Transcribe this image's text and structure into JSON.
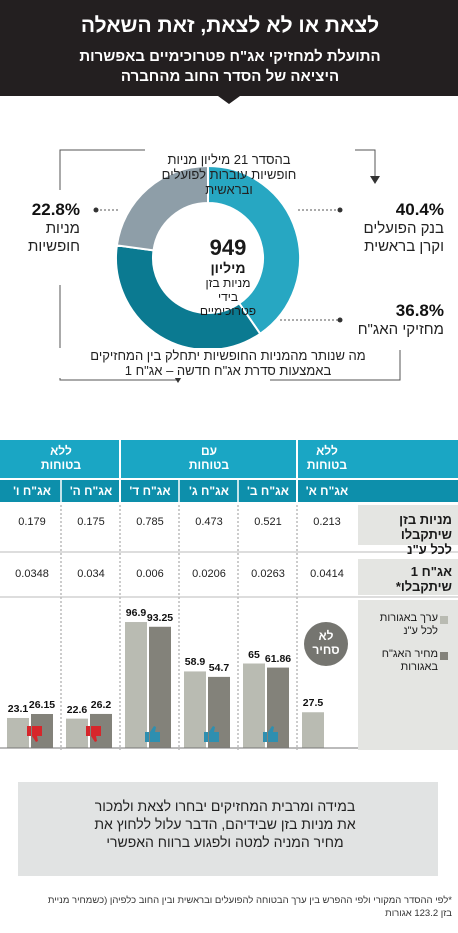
{
  "header": {
    "title": "לצאת או לא לצאת, זאת השאלה",
    "sub1": "התועלת למחזיקי אג\"ח פטרוכימיים באפשרות",
    "sub2": "היציאה של הסדר החוב מהחברה"
  },
  "donut": {
    "center_value": "949",
    "center_unit": "מיליון",
    "center_line1": "מניות בזן",
    "center_line2": "בידי",
    "center_line3": "פטרוכימיים",
    "top_note_line1": "בהסדר 21 מיליון מניות",
    "top_note_line2": "חופשיות עוברות לפועלים",
    "top_note_line3": "ובראשית",
    "bottom_note_line1": "מה שנותר מהמניות החופשיות יתחלק בין המחזיקים",
    "bottom_note_line2": "באמצעות סדרת אג\"ח חדשה – אג\"ח 1",
    "colors": {
      "bank": "#27a7c2",
      "holders": "#0b7a91",
      "free": "#8e9ea8"
    }
  },
  "chart_data": [
    {
      "type": "pie",
      "title": "",
      "slices": [
        {
          "label": "בנק הפועלים וקרן בראשית",
          "value": 40.4,
          "display": "40.4%",
          "line1": "בנק הפועלים",
          "line2": "וקרן בראשית"
        },
        {
          "label": "מחזיקי האג\"ח",
          "value": 36.8,
          "display": "36.8%",
          "line1": "מחזיקי האג\"ח",
          "line2": ""
        },
        {
          "label": "מניות חופשיות",
          "value": 22.8,
          "display": "22.8%",
          "line1": "מניות",
          "line2": "חופשיות"
        }
      ]
    },
    {
      "type": "bar",
      "categories": [
        "אג\"ח א'",
        "אג\"ח ב'",
        "אג\"ח ג'",
        "אג\"ח ד'",
        "אג\"ח ה'",
        "אג\"ח ו'"
      ],
      "series": [
        {
          "name": "ערך באגורות לכל ע\"נ",
          "values": [
            27.5,
            65,
            58.9,
            96.9,
            22.6,
            23.1
          ],
          "labels": [
            "27.5",
            "65",
            "58.9",
            "96.9",
            "22.6",
            "23.1"
          ]
        },
        {
          "name": "מחיר האג\"ח באגורות",
          "values": [
            null,
            61.86,
            54.7,
            93.25,
            26.2,
            26.15
          ],
          "labels": [
            "",
            "61.86",
            "54.7",
            "93.25",
            "26.2",
            "26.15"
          ]
        }
      ],
      "ylim": [
        0,
        100
      ]
    }
  ],
  "table": {
    "groups": [
      {
        "label_line1": "ללא",
        "label_line2": "בטוחות"
      },
      {
        "label_line1": "עם",
        "label_line2": "בטוחות"
      },
      {
        "label_line1": "ללא",
        "label_line2": "בטוחות"
      }
    ],
    "shares_per_nv_label_line1": "מניות בזן",
    "shares_per_nv_label_line2": "שיתקבלו",
    "shares_per_nv_label_line3": "לכל ע\"נ",
    "shares_per_nv": [
      "0.213",
      "0.521",
      "0.473",
      "0.785",
      "0.175",
      "0.179"
    ],
    "bond1_label_line1": "אג\"ח 1",
    "bond1_label_line2": "שיתקבלו*",
    "bond1_received": [
      "0.0414",
      "0.0263",
      "0.0206",
      "0.006",
      "0.034",
      "0.0348"
    ],
    "legend_value_line1": "ערך באגורות",
    "legend_value_line2": "לכל ע\"נ",
    "legend_price_line1": "מחיר האג\"ח",
    "legend_price_line2": "באגורות",
    "no_price_line1": "לא",
    "no_price_line2": "סחיר",
    "colors": {
      "header": "#1aa6c4",
      "header_dark": "#0d8fab",
      "value": "#b9bbb2",
      "price": "#83827a",
      "thumb_up": "#2e8fb0",
      "thumb_down": "#d6262b"
    }
  },
  "callout": {
    "line1": "במידה ומרבית המחזיקים יבחרו לצאת ולמכור",
    "line2": "את מניות בזן שבידיהם, הדבר עלול ללחוץ את",
    "line3": "מחיר המניה למטה ולפגוע ברווח האפשרי"
  },
  "footnote": {
    "line1": "*לפי ההסדר המקורי ולפי ההפרש בין ערך הבטוחה להפועלים ובראשית ובין החוב כלפיהן (כשמחיר מניית",
    "line2": "בזן 123.2 אגורות"
  }
}
